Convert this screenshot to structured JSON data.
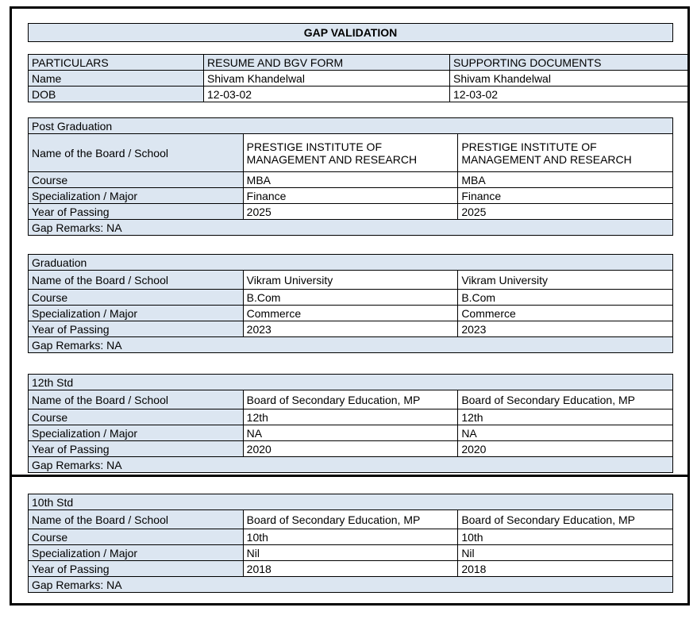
{
  "title": "GAP VALIDATION",
  "colors": {
    "accent_bg": "#DCE6F1",
    "border": "#000000",
    "page_bg": "#FFFFFF"
  },
  "particulars": {
    "headers": [
      "PARTICULARS",
      "RESUME AND BGV FORM",
      "SUPPORTING DOCUMENTS"
    ],
    "name": {
      "label": "Name",
      "resume": "Shivam Khandelwal",
      "supporting": "Shivam Khandelwal"
    },
    "dob": {
      "label": "DOB",
      "resume": "12-03-02",
      "supporting": "12-03-02"
    }
  },
  "row_labels": {
    "board": "Name of the Board / School",
    "course": "Course",
    "specialization": "Specialization / Major",
    "year": "Year of Passing"
  },
  "sections": [
    {
      "heading": "Post Graduation",
      "board": {
        "resume": "PRESTIGE INSTITUTE OF MANAGEMENT AND RESEARCH",
        "supporting": "PRESTIGE INSTITUTE OF MANAGEMENT AND RESEARCH"
      },
      "course": {
        "resume": "MBA",
        "supporting": "MBA"
      },
      "specialization": {
        "resume": "Finance",
        "supporting": "Finance"
      },
      "year": {
        "resume": "2025",
        "supporting": "2025"
      },
      "gap_remarks": "Gap Remarks: NA"
    },
    {
      "heading": "Graduation",
      "board": {
        "resume": "Vikram University",
        "supporting": "Vikram University"
      },
      "course": {
        "resume": "B.Com",
        "supporting": "B.Com"
      },
      "specialization": {
        "resume": "Commerce",
        "supporting": "Commerce"
      },
      "year": {
        "resume": "2023",
        "supporting": "2023"
      },
      "gap_remarks": "Gap Remarks: NA"
    },
    {
      "heading": "12th Std",
      "board": {
        "resume": "Board of Secondary Education, MP",
        "supporting": "Board of Secondary Education, MP"
      },
      "course": {
        "resume": "12th",
        "supporting": "12th"
      },
      "specialization": {
        "resume": "NA",
        "supporting": "NA"
      },
      "year": {
        "resume": "2020",
        "supporting": "2020"
      },
      "gap_remarks": "Gap Remarks: NA"
    },
    {
      "heading": "10th Std",
      "board": {
        "resume": "Board of Secondary Education, MP",
        "supporting": "Board of Secondary Education, MP"
      },
      "course": {
        "resume": "10th",
        "supporting": "10th"
      },
      "specialization": {
        "resume": "Nil",
        "supporting": "Nil"
      },
      "year": {
        "resume": "2018",
        "supporting": "2018"
      },
      "gap_remarks": "Gap Remarks: NA"
    }
  ]
}
